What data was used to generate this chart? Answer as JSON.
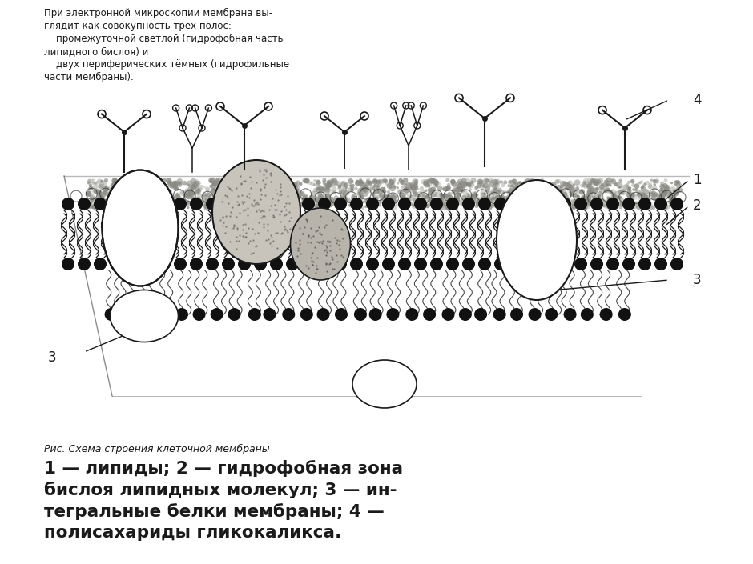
{
  "background_color": "#ffffff",
  "header_lines": [
    "При электронной микроскопии мембрана вы-",
    "глядит как совокупность трех полос:",
    "    промежуточной светлой (гидрофобная часть",
    "липидного бислоя) и",
    "    двух периферических тёмных (гидрофильные",
    "части мембраны)."
  ],
  "caption_small": "Рис. Схема строения клеточной мембраны",
  "caption_bold_lines": [
    "1 — липиды; 2 — гидрофобная зона",
    "бислоя липидных молекул; 3 — ин-",
    "тегральные белки мембраны; 4 —",
    "полисахариды гликокаликса."
  ],
  "labels": [
    "1",
    "2",
    "3",
    "4"
  ],
  "lc": "#1a1a1a",
  "hc": "#111111",
  "stipple_color": "#555555",
  "protein_fill": "#e8e4dc",
  "protein_stipple": "#888880"
}
